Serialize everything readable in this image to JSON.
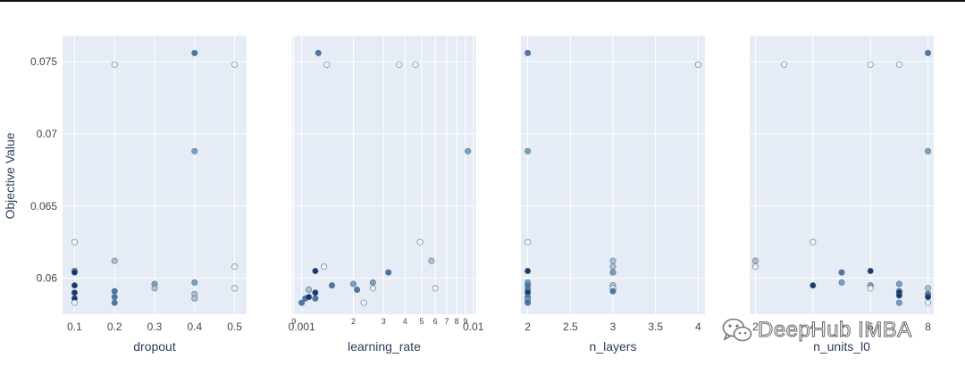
{
  "chart_data": {
    "type": "scatter",
    "title": "",
    "ylabel": "Objective Value",
    "ylim": [
      0.0575,
      0.0768
    ],
    "yticks": [
      {
        "value": 0.06,
        "label": "0.06"
      },
      {
        "value": 0.065,
        "label": "0.065"
      },
      {
        "value": 0.07,
        "label": "0.07"
      },
      {
        "value": 0.075,
        "label": "0.075"
      }
    ],
    "marker_colors": [
      "#f0f4f8",
      "#a7bfd3",
      "#6c9dc1",
      "#3d72a8",
      "#0b2f6b"
    ],
    "panels": [
      {
        "name": "dropout",
        "xlabel": "dropout",
        "scale": "linear",
        "xlim": [
          0.07,
          0.53
        ],
        "xticks": [
          {
            "value": 0.1,
            "label": "0.1"
          },
          {
            "value": 0.2,
            "label": "0.2"
          },
          {
            "value": 0.3,
            "label": "0.3"
          },
          {
            "value": 0.4,
            "label": "0.4"
          },
          {
            "value": 0.5,
            "label": "0.5"
          }
        ],
        "points": [
          {
            "x": 0.1,
            "y": 0.0625,
            "c": 0
          },
          {
            "x": 0.1,
            "y": 0.0605,
            "c": 3
          },
          {
            "x": 0.1,
            "y": 0.0604,
            "c": 4
          },
          {
            "x": 0.1,
            "y": 0.0595,
            "c": 4
          },
          {
            "x": 0.1,
            "y": 0.059,
            "c": 4
          },
          {
            "x": 0.1,
            "y": 0.0586,
            "c": 4
          },
          {
            "x": 0.1,
            "y": 0.0583,
            "c": 0
          },
          {
            "x": 0.2,
            "y": 0.0748,
            "c": 0
          },
          {
            "x": 0.2,
            "y": 0.0612,
            "c": 1
          },
          {
            "x": 0.2,
            "y": 0.0591,
            "c": 3
          },
          {
            "x": 0.2,
            "y": 0.0587,
            "c": 3
          },
          {
            "x": 0.2,
            "y": 0.0583,
            "c": 3
          },
          {
            "x": 0.3,
            "y": 0.0596,
            "c": 2
          },
          {
            "x": 0.3,
            "y": 0.0593,
            "c": 1
          },
          {
            "x": 0.4,
            "y": 0.0756,
            "c": 3
          },
          {
            "x": 0.4,
            "y": 0.0688,
            "c": 2
          },
          {
            "x": 0.4,
            "y": 0.0597,
            "c": 2
          },
          {
            "x": 0.4,
            "y": 0.0589,
            "c": 1
          },
          {
            "x": 0.4,
            "y": 0.0586,
            "c": 1
          },
          {
            "x": 0.5,
            "y": 0.0748,
            "c": 0
          },
          {
            "x": 0.5,
            "y": 0.0608,
            "c": 0
          },
          {
            "x": 0.5,
            "y": 0.0593,
            "c": 0
          }
        ]
      },
      {
        "name": "learning_rate",
        "xlabel": "learning_rate",
        "scale": "log",
        "xlim": [
          0.00088,
          0.0104
        ],
        "xticks": [
          {
            "value": 0.001,
            "label": "0.001"
          },
          {
            "value": 0.01,
            "label": "0.01"
          }
        ],
        "minor_ticks": [
          {
            "value": 0.0009,
            "label": "9"
          },
          {
            "value": 0.002,
            "label": "2"
          },
          {
            "value": 0.003,
            "label": "3"
          },
          {
            "value": 0.004,
            "label": "4"
          },
          {
            "value": 0.005,
            "label": "5"
          },
          {
            "value": 0.006,
            "label": "6"
          },
          {
            "value": 0.007,
            "label": "7"
          },
          {
            "value": 0.008,
            "label": "8"
          },
          {
            "value": 0.009,
            "label": "9"
          }
        ],
        "points": [
          {
            "x": 0.00125,
            "y": 0.0756,
            "c": 3
          },
          {
            "x": 0.0014,
            "y": 0.0748,
            "c": 0
          },
          {
            "x": 0.0037,
            "y": 0.0748,
            "c": 0
          },
          {
            "x": 0.0046,
            "y": 0.0748,
            "c": 0
          },
          {
            "x": 0.0093,
            "y": 0.0688,
            "c": 2
          },
          {
            "x": 0.0049,
            "y": 0.0625,
            "c": 0
          },
          {
            "x": 0.0057,
            "y": 0.0612,
            "c": 1
          },
          {
            "x": 0.00135,
            "y": 0.0608,
            "c": 0
          },
          {
            "x": 0.0012,
            "y": 0.0605,
            "c": 4
          },
          {
            "x": 0.0032,
            "y": 0.0604,
            "c": 3
          },
          {
            "x": 0.0026,
            "y": 0.0597,
            "c": 2
          },
          {
            "x": 0.0015,
            "y": 0.0595,
            "c": 3
          },
          {
            "x": 0.002,
            "y": 0.0596,
            "c": 2
          },
          {
            "x": 0.0021,
            "y": 0.0592,
            "c": 3
          },
          {
            "x": 0.006,
            "y": 0.0593,
            "c": 0
          },
          {
            "x": 0.0026,
            "y": 0.0593,
            "c": 0
          },
          {
            "x": 0.0012,
            "y": 0.059,
            "c": 4
          },
          {
            "x": 0.0012,
            "y": 0.0586,
            "c": 3
          },
          {
            "x": 0.0011,
            "y": 0.0592,
            "c": 1
          },
          {
            "x": 0.00105,
            "y": 0.0586,
            "c": 3
          },
          {
            "x": 0.0011,
            "y": 0.0587,
            "c": 4
          },
          {
            "x": 0.001,
            "y": 0.0583,
            "c": 3
          },
          {
            "x": 0.0023,
            "y": 0.0583,
            "c": 0
          }
        ]
      },
      {
        "name": "n_layers",
        "xlabel": "n_layers",
        "scale": "linear",
        "xlim": [
          1.92,
          4.08
        ],
        "xticks": [
          {
            "value": 2,
            "label": "2"
          },
          {
            "value": 2.5,
            "label": "2.5"
          },
          {
            "value": 3,
            "label": "3"
          },
          {
            "value": 3.5,
            "label": "3.5"
          },
          {
            "value": 4,
            "label": "4"
          }
        ],
        "points": [
          {
            "x": 2,
            "y": 0.0756,
            "c": 3
          },
          {
            "x": 2,
            "y": 0.0688,
            "c": 2
          },
          {
            "x": 2,
            "y": 0.0625,
            "c": 0
          },
          {
            "x": 2,
            "y": 0.0605,
            "c": 4
          },
          {
            "x": 2,
            "y": 0.0597,
            "c": 2
          },
          {
            "x": 2,
            "y": 0.0595,
            "c": 3
          },
          {
            "x": 2,
            "y": 0.0592,
            "c": 3
          },
          {
            "x": 2,
            "y": 0.059,
            "c": 4
          },
          {
            "x": 2,
            "y": 0.0587,
            "c": 3
          },
          {
            "x": 2,
            "y": 0.0585,
            "c": 2
          },
          {
            "x": 2,
            "y": 0.0583,
            "c": 3
          },
          {
            "x": 3,
            "y": 0.0612,
            "c": 1
          },
          {
            "x": 3,
            "y": 0.0608,
            "c": 1
          },
          {
            "x": 3,
            "y": 0.0604,
            "c": 2
          },
          {
            "x": 3,
            "y": 0.0595,
            "c": 1
          },
          {
            "x": 3,
            "y": 0.0593,
            "c": 0
          },
          {
            "x": 3,
            "y": 0.0591,
            "c": 3
          },
          {
            "x": 4,
            "y": 0.0748,
            "c": 1
          },
          {
            "x": 4,
            "y": 0.0748,
            "c": 0
          }
        ]
      },
      {
        "name": "n_units_l0",
        "xlabel": "n_units_l0",
        "scale": "linear",
        "xlim": [
          1.8,
          8.2
        ],
        "xticks": [
          {
            "value": 2,
            "label": "2"
          },
          {
            "value": 4,
            "label": "4"
          },
          {
            "value": 6,
            "label": "6"
          },
          {
            "value": 8,
            "label": "8"
          }
        ],
        "points": [
          {
            "x": 3,
            "y": 0.0748,
            "c": 0
          },
          {
            "x": 6,
            "y": 0.0748,
            "c": 0
          },
          {
            "x": 7,
            "y": 0.0748,
            "c": 0
          },
          {
            "x": 8,
            "y": 0.0756,
            "c": 3
          },
          {
            "x": 8,
            "y": 0.0688,
            "c": 2
          },
          {
            "x": 4,
            "y": 0.0625,
            "c": 0
          },
          {
            "x": 2,
            "y": 0.0612,
            "c": 1
          },
          {
            "x": 2,
            "y": 0.0608,
            "c": 0
          },
          {
            "x": 6,
            "y": 0.0605,
            "c": 4
          },
          {
            "x": 5,
            "y": 0.0604,
            "c": 3
          },
          {
            "x": 5,
            "y": 0.0597,
            "c": 2
          },
          {
            "x": 4,
            "y": 0.0595,
            "c": 4
          },
          {
            "x": 6,
            "y": 0.0595,
            "c": 2
          },
          {
            "x": 6,
            "y": 0.0593,
            "c": 0
          },
          {
            "x": 7,
            "y": 0.0596,
            "c": 2
          },
          {
            "x": 7,
            "y": 0.0591,
            "c": 3
          },
          {
            "x": 7,
            "y": 0.059,
            "c": 4
          },
          {
            "x": 7,
            "y": 0.0588,
            "c": 4
          },
          {
            "x": 7,
            "y": 0.0583,
            "c": 2
          },
          {
            "x": 8,
            "y": 0.0593,
            "c": 1
          },
          {
            "x": 8,
            "y": 0.0589,
            "c": 3
          },
          {
            "x": 8,
            "y": 0.0587,
            "c": 4
          },
          {
            "x": 8,
            "y": 0.0583,
            "c": 0
          }
        ]
      }
    ]
  },
  "watermark": {
    "text": "DeepHub IMBA",
    "icon": "wechat-icon"
  }
}
